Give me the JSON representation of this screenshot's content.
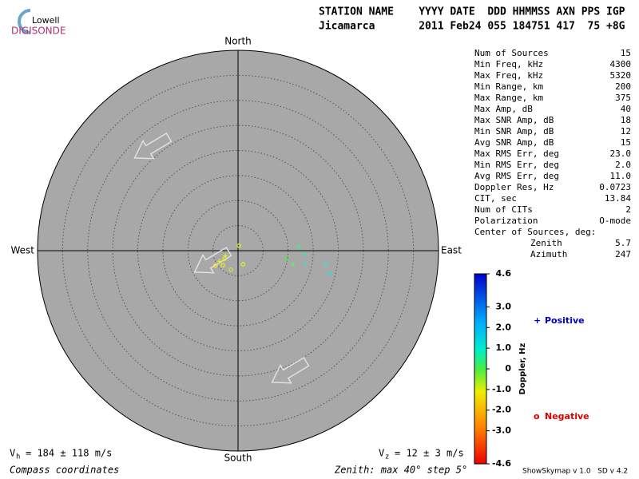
{
  "logo": {
    "top": "Lowell",
    "bottom": "DIGISONDE"
  },
  "header": {
    "columns": "STATION NAME    YYYY DATE  DDD HHMMSS AXN PPS IGP",
    "values": "Jicamarca       2011 Feb24 055 184751 417  75 +8G"
  },
  "compass": {
    "north": "North",
    "south": "South",
    "east": "East",
    "west": "West"
  },
  "stats": [
    [
      "Num of Sources",
      "15"
    ],
    [
      "Min Freq, kHz",
      "4300"
    ],
    [
      "Max Freq, kHz",
      "5320"
    ],
    [
      "Min Range, km",
      "200"
    ],
    [
      "Max Range, km",
      "375"
    ],
    [
      "Max Amp, dB",
      "40"
    ],
    [
      "Max SNR Amp, dB",
      "18"
    ],
    [
      "Min SNR Amp, dB",
      "12"
    ],
    [
      "Avg SNR Amp, dB",
      "15"
    ],
    [
      "Max RMS Err, deg",
      "23.0"
    ],
    [
      "Min RMS Err, deg",
      "2.0"
    ],
    [
      "Avg RMS Err, deg",
      "11.0"
    ],
    [
      "Doppler Res, Hz",
      "0.0723"
    ],
    [
      "CIT, sec",
      "13.84"
    ],
    [
      "Num of CITs",
      "2"
    ],
    [
      "Polarization",
      "O-mode"
    ]
  ],
  "center": {
    "title": "Center of Sources, deg:",
    "zenith_label": "Zenith",
    "zenith": "5.7",
    "azimuth_label": "Azimuth",
    "azimuth": "247"
  },
  "zenith_max": 40,
  "zenith_step": 5,
  "sources": [
    {
      "east": 0.2,
      "north": 1.0,
      "color": "#d8ee22",
      "positive": false
    },
    {
      "east": -2.5,
      "north": -1.0,
      "color": "#d8ee22",
      "positive": true
    },
    {
      "east": -2.7,
      "north": -1.6,
      "color": "#e8ee22",
      "positive": false
    },
    {
      "east": -3.7,
      "north": -2.1,
      "color": "#e8ee22",
      "positive": true
    },
    {
      "east": -4.5,
      "north": -3.0,
      "color": "#eeee22",
      "positive": false
    },
    {
      "east": -3.0,
      "north": -2.9,
      "color": "#eeee22",
      "positive": false
    },
    {
      "east": -1.4,
      "north": -3.8,
      "color": "#bbee33",
      "positive": false
    },
    {
      "east": 1.0,
      "north": -2.7,
      "color": "#eeee22",
      "positive": false
    },
    {
      "east": 12.1,
      "north": 0.8,
      "color": "#44ee88",
      "positive": true
    },
    {
      "east": 13.2,
      "north": -0.6,
      "color": "#44ddaa",
      "positive": true
    },
    {
      "east": 9.7,
      "north": -1.6,
      "color": "#44ee44",
      "positive": true
    },
    {
      "east": 11.0,
      "north": -2.7,
      "color": "#66ee66",
      "positive": true
    },
    {
      "east": 13.5,
      "north": -2.7,
      "color": "#44ddbb",
      "positive": true
    },
    {
      "east": 17.5,
      "north": -2.7,
      "color": "#44ddcc",
      "positive": false
    },
    {
      "east": 18.3,
      "north": -4.6,
      "color": "#22ddee",
      "positive": true
    }
  ],
  "colorbar": {
    "title": "Doppler, Hz",
    "lim": [
      -4.6,
      4.6
    ],
    "ticks": [
      4.6,
      {
        "value": 3,
        "label": "3.0"
      },
      {
        "value": 2,
        "label": "2.0"
      },
      {
        "value": 1,
        "label": "1.0"
      },
      0,
      {
        "value": -1,
        "label": "-1.0"
      },
      {
        "value": -2,
        "label": "-2.0"
      },
      {
        "value": -3,
        "label": "-3.0"
      },
      -4.6
    ]
  },
  "legend": {
    "positive_symbol": "+",
    "positive": "Positive",
    "negative_symbol": "o",
    "negative": "Negative"
  },
  "footer": {
    "vh_symbol": "V",
    "vh_sub": "h",
    "vh_value": "= 184 ± 118 m/s",
    "vz_symbol": "V",
    "vz_sub": "z",
    "vz_value": "= 12 ± 3 m/s",
    "coords": "Compass coordinates",
    "zenith": "Zenith: max 40°  step 5°",
    "version": "ShowSkymap v 1.0   SD v 4.2"
  }
}
